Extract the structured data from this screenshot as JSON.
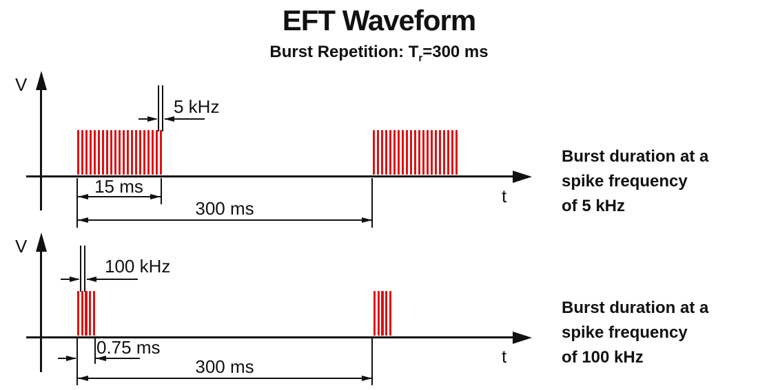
{
  "title": "EFT Waveform",
  "subtitle": {
    "before_sub": "Burst Repetition: T",
    "subscript": "r",
    "after_sub": "=300 ms"
  },
  "colors": {
    "spike_red": "#dd1111",
    "line_black": "#111111"
  },
  "panels": [
    {
      "y_axis_label": "V",
      "x_axis_label": "t",
      "spike_frequency_callout": "5 kHz",
      "burst_duration_dimension": "15 ms",
      "burst_repetition_dimension": "300 ms",
      "spike_count_per_burst": 21,
      "burst_count": 2,
      "caption": {
        "line1": "Burst duration at a",
        "line2": "spike frequency",
        "line3": "of 5 kHz"
      }
    },
    {
      "y_axis_label": "V",
      "x_axis_label": "t",
      "spike_frequency_callout": "100 kHz",
      "burst_duration_dimension": "0.75 ms",
      "burst_repetition_dimension": "300 ms",
      "spike_count_per_burst": 5,
      "burst_count": 2,
      "caption": {
        "line1": "Burst duration at a",
        "line2": "spike frequency",
        "line3": "of 100 kHz"
      }
    }
  ]
}
